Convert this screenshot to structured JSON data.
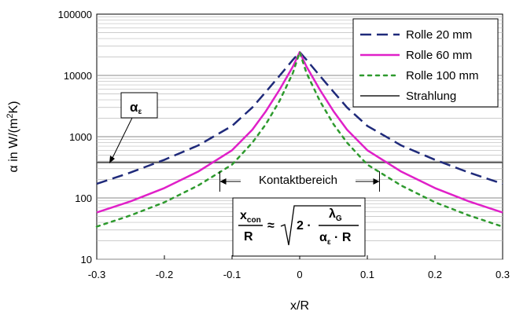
{
  "chart_data": {
    "type": "line",
    "title": "",
    "xlabel": "x/R",
    "ylabel": "α in W/(m²K)",
    "ylabel_parts": {
      "pre": "α in W/(m",
      "sup": "2",
      "post": "K)"
    },
    "xlim": [
      -0.3,
      0.3
    ],
    "ylim": [
      10,
      100000
    ],
    "yscale": "log",
    "grid": true,
    "legend_position": "top-right",
    "x_ticks": [
      "-0.3",
      "-0.2",
      "-0.1",
      "0",
      "0.1",
      "0.2",
      "0.3"
    ],
    "y_ticks": [
      "10",
      "100",
      "1000",
      "10000",
      "100000"
    ],
    "series": [
      {
        "name": "Rolle 20 mm",
        "color": "#1f2a7a",
        "style": "dashed",
        "x": [
          -0.3,
          -0.25,
          -0.2,
          -0.15,
          -0.1,
          -0.07,
          -0.05,
          -0.03,
          -0.01,
          0,
          0.01,
          0.03,
          0.05,
          0.07,
          0.1,
          0.15,
          0.2,
          0.25,
          0.3
        ],
        "y": [
          170,
          260,
          420,
          720,
          1500,
          3000,
          5400,
          9800,
          18000,
          24000,
          18000,
          9800,
          5400,
          3000,
          1500,
          720,
          420,
          260,
          170
        ]
      },
      {
        "name": "Rolle 60 mm",
        "color": "#e020c8",
        "style": "solid",
        "x": [
          -0.3,
          -0.25,
          -0.2,
          -0.15,
          -0.1,
          -0.07,
          -0.05,
          -0.03,
          -0.01,
          0,
          0.01,
          0.03,
          0.05,
          0.07,
          0.1,
          0.15,
          0.2,
          0.25,
          0.3
        ],
        "y": [
          58,
          88,
          145,
          270,
          600,
          1300,
          2600,
          5800,
          14000,
          24000,
          14000,
          5800,
          2600,
          1300,
          600,
          270,
          145,
          88,
          58
        ]
      },
      {
        "name": "Rolle 100 mm",
        "color": "#2e9a2e",
        "style": "dotted",
        "x": [
          -0.3,
          -0.25,
          -0.2,
          -0.15,
          -0.1,
          -0.07,
          -0.05,
          -0.03,
          -0.01,
          0,
          0.01,
          0.03,
          0.05,
          0.07,
          0.1,
          0.15,
          0.2,
          0.25,
          0.3
        ],
        "y": [
          34,
          52,
          85,
          160,
          350,
          800,
          1600,
          3800,
          11000,
          24000,
          11000,
          3800,
          1600,
          800,
          350,
          160,
          85,
          52,
          34
        ]
      },
      {
        "name": "Strahlung",
        "color": "#555555",
        "style": "solid",
        "x": [
          -0.3,
          0.3
        ],
        "y": [
          380,
          380
        ]
      }
    ],
    "annotations": {
      "alpha_eps": {
        "main": "α",
        "sub": "ε"
      },
      "kontakt": "Kontaktbereich",
      "kontakt_range": [
        -0.118,
        0.118
      ],
      "formula": {
        "lhs_top": "x",
        "lhs_top_sub": "con",
        "lhs_bottom": "R",
        "approx": "≈",
        "two": "2 ·",
        "rhs_top": "λ",
        "rhs_top_sub": "G",
        "rhs_bottom": "α",
        "rhs_bottom_sub": "ε",
        "rhs_bottom_rest": " · R"
      }
    }
  }
}
